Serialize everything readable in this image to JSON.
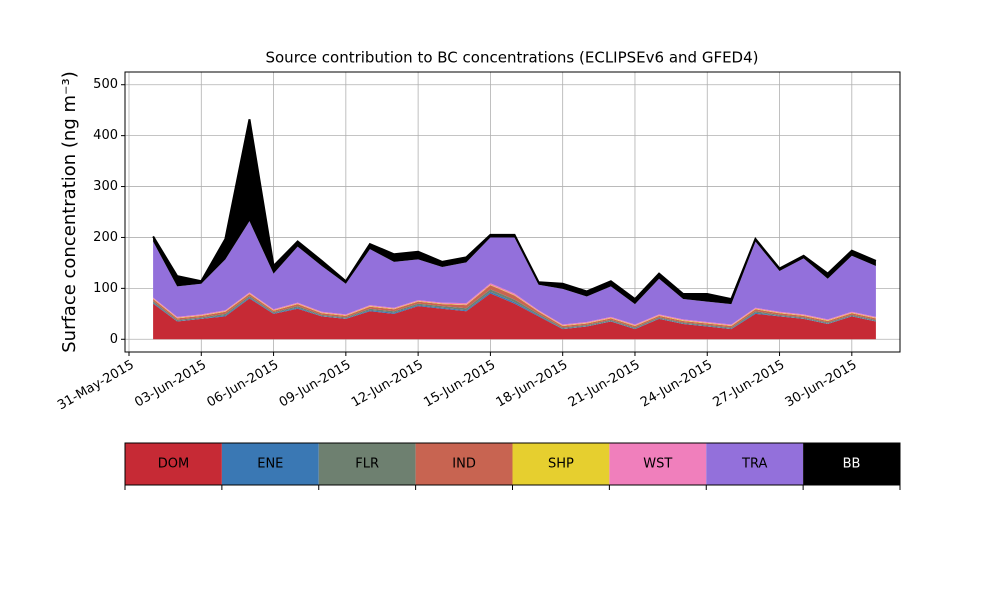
{
  "chart_data": {
    "type": "stacked_area",
    "title": "Source contribution to BC concentrations (ECLIPSEv6 and GFED4)",
    "y_label": "Surface concentration (ng m⁻³)",
    "x": [
      "2015-06-01",
      "2015-06-02",
      "2015-06-03",
      "2015-06-04",
      "2015-06-05",
      "2015-06-06",
      "2015-06-07",
      "2015-06-08",
      "2015-06-09",
      "2015-06-10",
      "2015-06-11",
      "2015-06-12",
      "2015-06-13",
      "2015-06-14",
      "2015-06-15",
      "2015-06-16",
      "2015-06-17",
      "2015-06-18",
      "2015-06-19",
      "2015-06-20",
      "2015-06-21",
      "2015-06-22",
      "2015-06-23",
      "2015-06-24",
      "2015-06-25",
      "2015-06-26",
      "2015-06-27",
      "2015-06-28",
      "2015-06-29",
      "2015-06-30",
      "2015-07-01"
    ],
    "series": [
      {
        "name": "DOM",
        "color": "#c62a35",
        "values": [
          70,
          35,
          40,
          45,
          80,
          50,
          60,
          45,
          40,
          55,
          50,
          65,
          60,
          55,
          90,
          70,
          45,
          20,
          25,
          35,
          20,
          40,
          30,
          25,
          20,
          50,
          45,
          40,
          30,
          45,
          35
        ]
      },
      {
        "name": "ENE",
        "color": "#3a78b4",
        "values": [
          2,
          1,
          1,
          2,
          2,
          1,
          2,
          1,
          1,
          2,
          2,
          2,
          2,
          2,
          3,
          3,
          2,
          1,
          1,
          1,
          1,
          1,
          1,
          1,
          1,
          2,
          1,
          1,
          1,
          1,
          1
        ]
      },
      {
        "name": "FLR",
        "color": "#6e8070",
        "values": [
          3,
          2,
          2,
          3,
          3,
          2,
          3,
          2,
          2,
          3,
          3,
          3,
          3,
          4,
          5,
          5,
          3,
          2,
          2,
          2,
          2,
          2,
          2,
          2,
          2,
          3,
          2,
          2,
          2,
          2,
          2
        ]
      },
      {
        "name": "IND",
        "color": "#c86451",
        "values": [
          4,
          3,
          3,
          4,
          4,
          3,
          4,
          3,
          3,
          4,
          4,
          4,
          4,
          6,
          8,
          8,
          4,
          3,
          3,
          3,
          3,
          3,
          3,
          3,
          3,
          4,
          3,
          3,
          3,
          3,
          3
        ]
      },
      {
        "name": "SHP",
        "color": "#e6cf2f",
        "values": [
          1,
          1,
          1,
          1,
          1,
          1,
          1,
          1,
          1,
          1,
          1,
          1,
          1,
          1,
          1,
          1,
          1,
          1,
          1,
          1,
          1,
          1,
          1,
          1,
          1,
          1,
          1,
          1,
          1,
          1,
          1
        ]
      },
      {
        "name": "WST",
        "color": "#f07fbc",
        "values": [
          2,
          2,
          2,
          2,
          2,
          2,
          2,
          2,
          2,
          2,
          2,
          2,
          2,
          3,
          3,
          3,
          2,
          2,
          2,
          2,
          2,
          2,
          2,
          2,
          2,
          2,
          2,
          2,
          2,
          2,
          2
        ]
      },
      {
        "name": "TRA",
        "color": "#9370db",
        "values": [
          110,
          60,
          60,
          100,
          140,
          70,
          110,
          90,
          60,
          110,
          90,
          80,
          70,
          80,
          90,
          110,
          50,
          70,
          50,
          60,
          40,
          70,
          40,
          40,
          40,
          130,
          80,
          110,
          80,
          110,
          100
        ]
      },
      {
        "name": "BB",
        "color": "#000000",
        "values": [
          10,
          20,
          5,
          40,
          200,
          15,
          10,
          10,
          5,
          10,
          15,
          15,
          10,
          10,
          5,
          5,
          5,
          10,
          10,
          10,
          10,
          10,
          10,
          15,
          10,
          5,
          5,
          5,
          10,
          10,
          10
        ]
      }
    ],
    "xlim": [
      "2015-05-31",
      "2015-07-02"
    ],
    "xticks": [
      {
        "value": "2015-05-31",
        "label": "31-May-2015"
      },
      {
        "value": "2015-06-03",
        "label": "03-Jun-2015"
      },
      {
        "value": "2015-06-06",
        "label": "06-Jun-2015"
      },
      {
        "value": "2015-06-09",
        "label": "09-Jun-2015"
      },
      {
        "value": "2015-06-12",
        "label": "12-Jun-2015"
      },
      {
        "value": "2015-06-15",
        "label": "15-Jun-2015"
      },
      {
        "value": "2015-06-18",
        "label": "18-Jun-2015"
      },
      {
        "value": "2015-06-21",
        "label": "21-Jun-2015"
      },
      {
        "value": "2015-06-24",
        "label": "24-Jun-2015"
      },
      {
        "value": "2015-06-27",
        "label": "27-Jun-2015"
      },
      {
        "value": "2015-06-30",
        "label": "30-Jun-2015"
      }
    ],
    "ylim": [
      -25,
      525
    ],
    "yticks": [
      0,
      100,
      200,
      300,
      400,
      500
    ],
    "grid": true
  }
}
